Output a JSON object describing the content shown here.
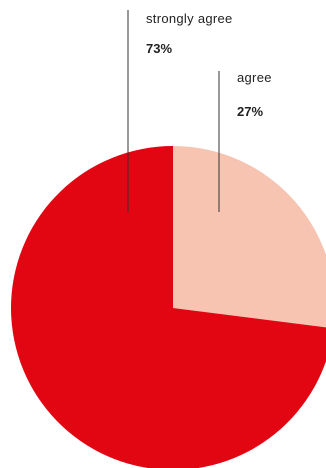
{
  "chart_data": {
    "type": "pie",
    "slices": [
      {
        "label": "strongly agree",
        "value": 73,
        "value_label": "73%",
        "color": "#e20613"
      },
      {
        "label": "agree",
        "value": 27,
        "value_label": "27%",
        "color": "#f6c4b1"
      }
    ],
    "legend": "leader-line labels above the pie"
  }
}
